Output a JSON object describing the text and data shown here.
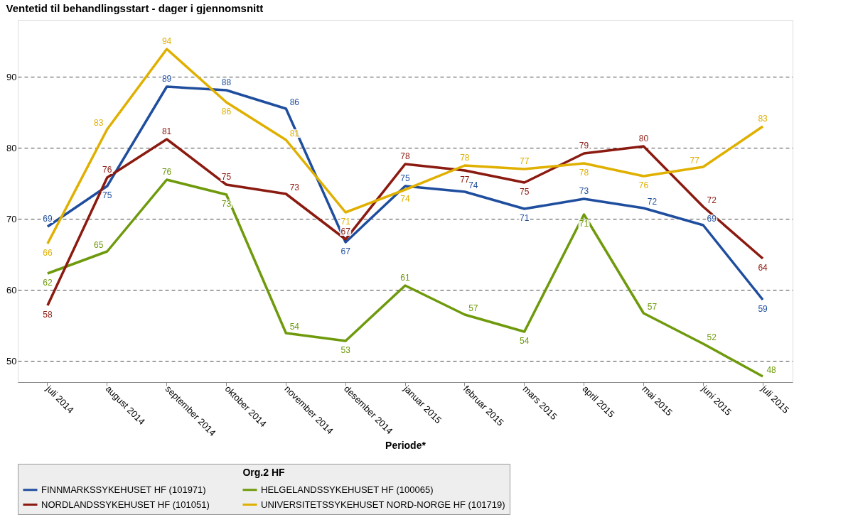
{
  "chart_data": {
    "type": "line",
    "title": "Ventetid til behandlingsstart - dager i gjennomsnitt",
    "xlabel": "Periode*",
    "legend_title": "Org.2 HF",
    "categories": [
      "juli 2014",
      "august 2014",
      "september 2014",
      "oktober 2014",
      "november 2014",
      "desember 2014",
      "januar 2015",
      "februar 2015",
      "mars 2015",
      "april 2015",
      "mai 2015",
      "juni 2015",
      "juli 2015"
    ],
    "series": [
      {
        "name": "FINNMARKSSYKEHUSET HF (101971)",
        "color": "#1f4e9e",
        "values": [
          68.9,
          74.6,
          88.6,
          88.1,
          85.5,
          66.7,
          74.6,
          73.8,
          71.4,
          72.8,
          71.5,
          69.1,
          58.6
        ],
        "value_labels": [
          "69",
          "75",
          "89",
          "88",
          "86",
          "67",
          "75",
          "74",
          "71",
          "73",
          "72",
          "69",
          "59"
        ]
      },
      {
        "name": "HELGELANDSSYKEHUSET HF (100065)",
        "color": "#6e9a0c",
        "values": [
          62.3,
          65.4,
          75.5,
          73.4,
          53.9,
          52.8,
          60.6,
          56.5,
          54.1,
          70.6,
          56.7,
          52.4,
          47.8
        ],
        "value_labels": [
          "62",
          "65",
          "76",
          "73",
          "54",
          "53",
          "61",
          "57",
          "54",
          "71",
          "57",
          "52",
          "48"
        ]
      },
      {
        "name": "NORDLANDSSYKEHUSET HF (101051)",
        "color": "#8b1a10",
        "values": [
          57.8,
          75.8,
          81.2,
          74.8,
          73.5,
          67.1,
          77.7,
          76.8,
          75.1,
          79.2,
          80.2,
          71.7,
          64.4
        ],
        "value_labels": [
          "58",
          "76",
          "81",
          "75",
          "73",
          "67",
          "78",
          "77",
          "75",
          "79",
          "80",
          "72",
          "64"
        ]
      },
      {
        "name": "UNIVERSITETSSYKEHUSET NORD-NORGE HF (101719)",
        "color": "#e0b000",
        "values": [
          66.5,
          82.6,
          93.9,
          86.4,
          81.1,
          70.9,
          74.1,
          77.5,
          77.0,
          77.8,
          76.0,
          77.3,
          83.0
        ],
        "value_labels": [
          "66",
          "83",
          "94",
          "86",
          "81",
          "71",
          "74",
          "78",
          "77",
          "78",
          "76",
          "77",
          "83"
        ]
      }
    ],
    "ylim": [
      47,
      98
    ],
    "yticks": [
      50,
      60,
      70,
      80,
      90
    ],
    "grid": "y",
    "legend": "bottom",
    "marker": "none",
    "line_style": "solid"
  }
}
